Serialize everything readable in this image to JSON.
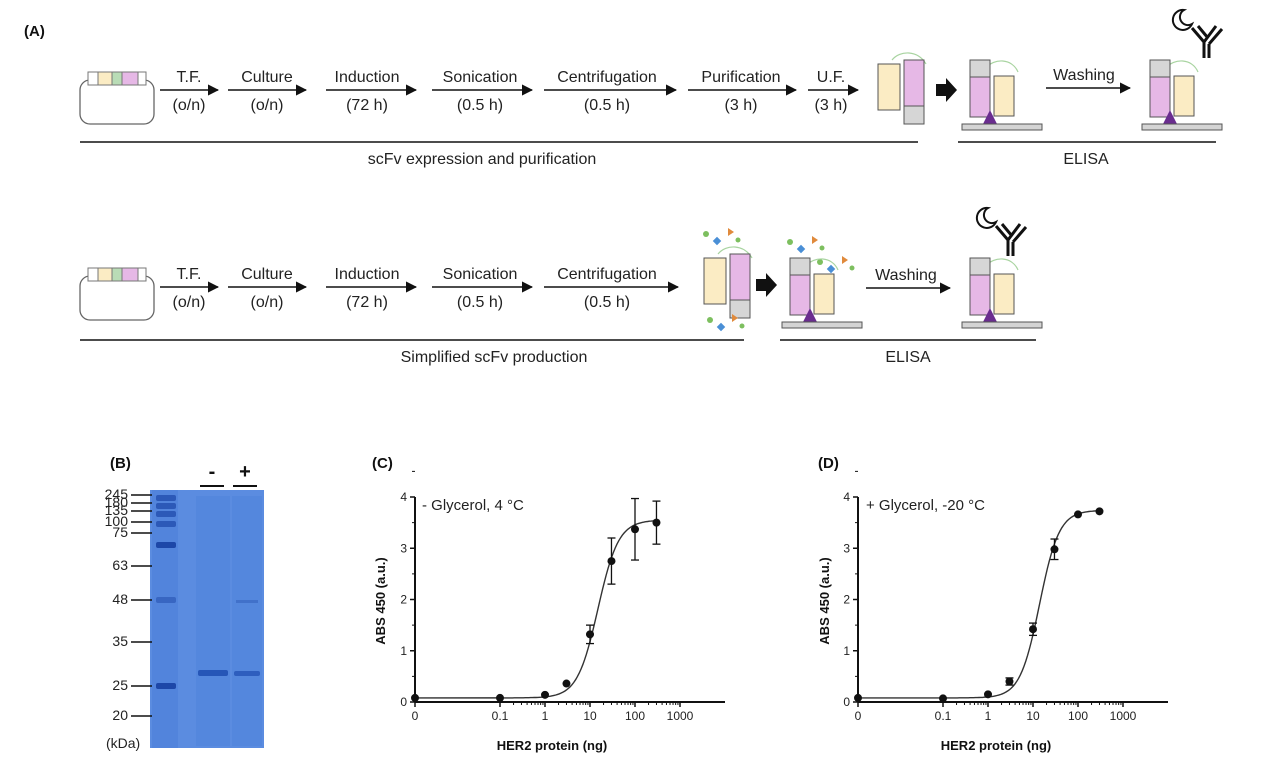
{
  "panel_a": {
    "label": "(A)",
    "row1": {
      "steps": [
        {
          "name": "T.F.",
          "time": "(o/n)"
        },
        {
          "name": "Culture",
          "time": "(o/n)"
        },
        {
          "name": "Induction",
          "time": "(72 h)"
        },
        {
          "name": "Sonication",
          "time": "(0.5 h)"
        },
        {
          "name": "Centrifugation",
          "time": "(0.5 h)"
        },
        {
          "name": "Purification",
          "time": "(3 h)"
        },
        {
          "name": "U.F.",
          "time": "(3 h)"
        }
      ],
      "washing": "Washing",
      "caption_left": "scFv expression and purification",
      "caption_right": "ELISA"
    },
    "row2": {
      "steps": [
        {
          "name": "T.F.",
          "time": "(o/n)"
        },
        {
          "name": "Culture",
          "time": "(o/n)"
        },
        {
          "name": "Induction",
          "time": "(72 h)"
        },
        {
          "name": "Sonication",
          "time": "(0.5 h)"
        },
        {
          "name": "Centrifugation",
          "time": "(0.5 h)"
        }
      ],
      "washing": "Washing",
      "caption_left": "Simplified scFv production",
      "caption_right": "ELISA"
    },
    "colors": {
      "vh": "#e6b8e6",
      "vl": "#fbecc4",
      "linker": "#b9dcb6",
      "tag": "#d6d6d6",
      "antigen": "#6a2d8f"
    }
  },
  "panel_b": {
    "label": "(B)",
    "lane_labels": [
      "-",
      "+"
    ],
    "marker_sizes": [
      "245",
      "180",
      "135",
      "100",
      "75",
      "63",
      "48",
      "35",
      "25",
      "20"
    ],
    "unit": "(kDa)",
    "gel_color": "#5b8ce0"
  },
  "chart_data": [
    {
      "type": "scatter",
      "label": "(C)",
      "annotation": "- Glycerol, 4 °C",
      "xlabel": "HER2 protein (ng)",
      "ylabel": "ABS 450 (a.u.)",
      "x_scale": "log with zero",
      "x_ticks": [
        "0",
        "0.1",
        "1",
        "10",
        "100",
        "1000"
      ],
      "y_ticks": [
        "0",
        "1",
        "2",
        "3",
        "4"
      ],
      "ylim": [
        0,
        4
      ],
      "fit": {
        "bottom": 0.08,
        "top": 3.55,
        "ec50": 15,
        "hill": 1.9
      },
      "points": [
        {
          "x": 0,
          "y": 0.08,
          "err": 0
        },
        {
          "x": 0.1,
          "y": 0.08,
          "err": 0
        },
        {
          "x": 1,
          "y": 0.14,
          "err": 0
        },
        {
          "x": 3,
          "y": 0.36,
          "err": 0
        },
        {
          "x": 10,
          "y": 1.32,
          "err": 0.18
        },
        {
          "x": 30,
          "y": 2.75,
          "err": 0.45
        },
        {
          "x": 100,
          "y": 3.37,
          "err": 0.6
        },
        {
          "x": 300,
          "y": 3.5,
          "err": 0.42
        }
      ]
    },
    {
      "type": "scatter",
      "label": "(D)",
      "annotation": "+ Glycerol, -20 °C",
      "xlabel": "HER2 protein (ng)",
      "ylabel": "ABS 450 (a.u.)",
      "x_scale": "log with zero",
      "x_ticks": [
        "0",
        "0.1",
        "1",
        "10",
        "100",
        "1000"
      ],
      "y_ticks": [
        "0",
        "1",
        "2",
        "3",
        "4"
      ],
      "ylim": [
        0,
        4
      ],
      "fit": {
        "bottom": 0.08,
        "top": 3.74,
        "ec50": 14,
        "hill": 2.0
      },
      "points": [
        {
          "x": 0,
          "y": 0.08,
          "err": 0
        },
        {
          "x": 0.1,
          "y": 0.07,
          "err": 0
        },
        {
          "x": 1,
          "y": 0.15,
          "err": 0
        },
        {
          "x": 3,
          "y": 0.4,
          "err": 0.07
        },
        {
          "x": 10,
          "y": 1.42,
          "err": 0.12
        },
        {
          "x": 30,
          "y": 2.98,
          "err": 0.2
        },
        {
          "x": 100,
          "y": 3.66,
          "err": 0
        },
        {
          "x": 300,
          "y": 3.72,
          "err": 0
        }
      ]
    }
  ]
}
